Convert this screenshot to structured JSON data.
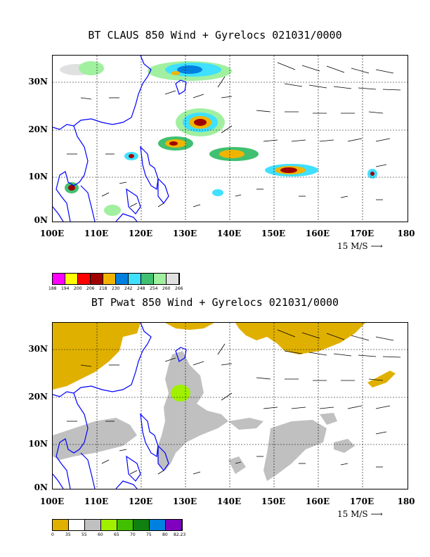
{
  "panels": [
    {
      "id": "claus",
      "title": "BT CLAUS 850 Wind + Gyrelocs 021031/0000",
      "y_labels": [
        "30N",
        "20N",
        "10N",
        "0N"
      ],
      "x_labels": [
        "100E",
        "110E",
        "120E",
        "130E",
        "140E",
        "150E",
        "160E",
        "170E",
        "180"
      ],
      "ref_vector": "15 M/S",
      "colorbar": {
        "colors": [
          "#ff00ff",
          "#ffff00",
          "#ff0000",
          "#a00000",
          "#f0b400",
          "#0080e0",
          "#40e0ff",
          "#40c070",
          "#a0f0a0",
          "#e0e0e0"
        ],
        "labels": [
          "188",
          "194",
          "200",
          "206",
          "218",
          "230",
          "242",
          "248",
          "254",
          "260",
          "266"
        ]
      }
    },
    {
      "id": "pwat",
      "title": "BT Pwat 850 Wind + Gyrelocs 021031/0000",
      "y_labels": [
        "30N",
        "20N",
        "10N",
        "0N"
      ],
      "x_labels": [
        "100E",
        "110E",
        "120E",
        "130E",
        "140E",
        "150E",
        "160E",
        "170E",
        "180"
      ],
      "ref_vector": "15 M/S",
      "colorbar": {
        "colors": [
          "#e0b000",
          "#ffffff",
          "#c0c0c0",
          "#a0f000",
          "#40c000",
          "#108010",
          "#0080e0",
          "#8000c0"
        ],
        "labels": [
          "0",
          "35",
          "55",
          "60",
          "65",
          "70",
          "75",
          "80",
          "82.23"
        ]
      }
    }
  ]
}
